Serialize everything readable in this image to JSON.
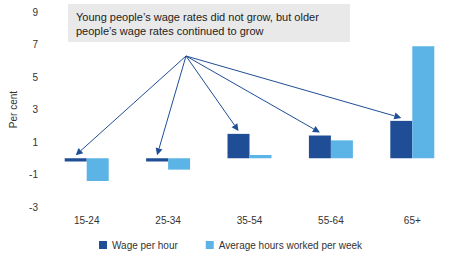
{
  "chart_data": {
    "type": "bar",
    "categories": [
      "15-24",
      "25-34",
      "35-54",
      "55-64",
      "65+"
    ],
    "series": [
      {
        "name": "Wage per hour",
        "color": "#1f4e96",
        "values": [
          -0.2,
          -0.2,
          1.5,
          1.4,
          2.3
        ]
      },
      {
        "name": "Average hours worked per week",
        "color": "#5bb4e5",
        "values": [
          -1.4,
          -0.7,
          0.2,
          1.1,
          6.9
        ]
      }
    ],
    "ylabel": "Per cent",
    "ylim": [
      -3,
      9
    ],
    "yticks": [
      -3,
      -1,
      1,
      3,
      5,
      7,
      9
    ],
    "annotations": [
      {
        "text": "Young people’s wage rates did not grow, but older people’s wage rates continued to grow"
      }
    ],
    "grid": false,
    "legend": "bottom"
  }
}
